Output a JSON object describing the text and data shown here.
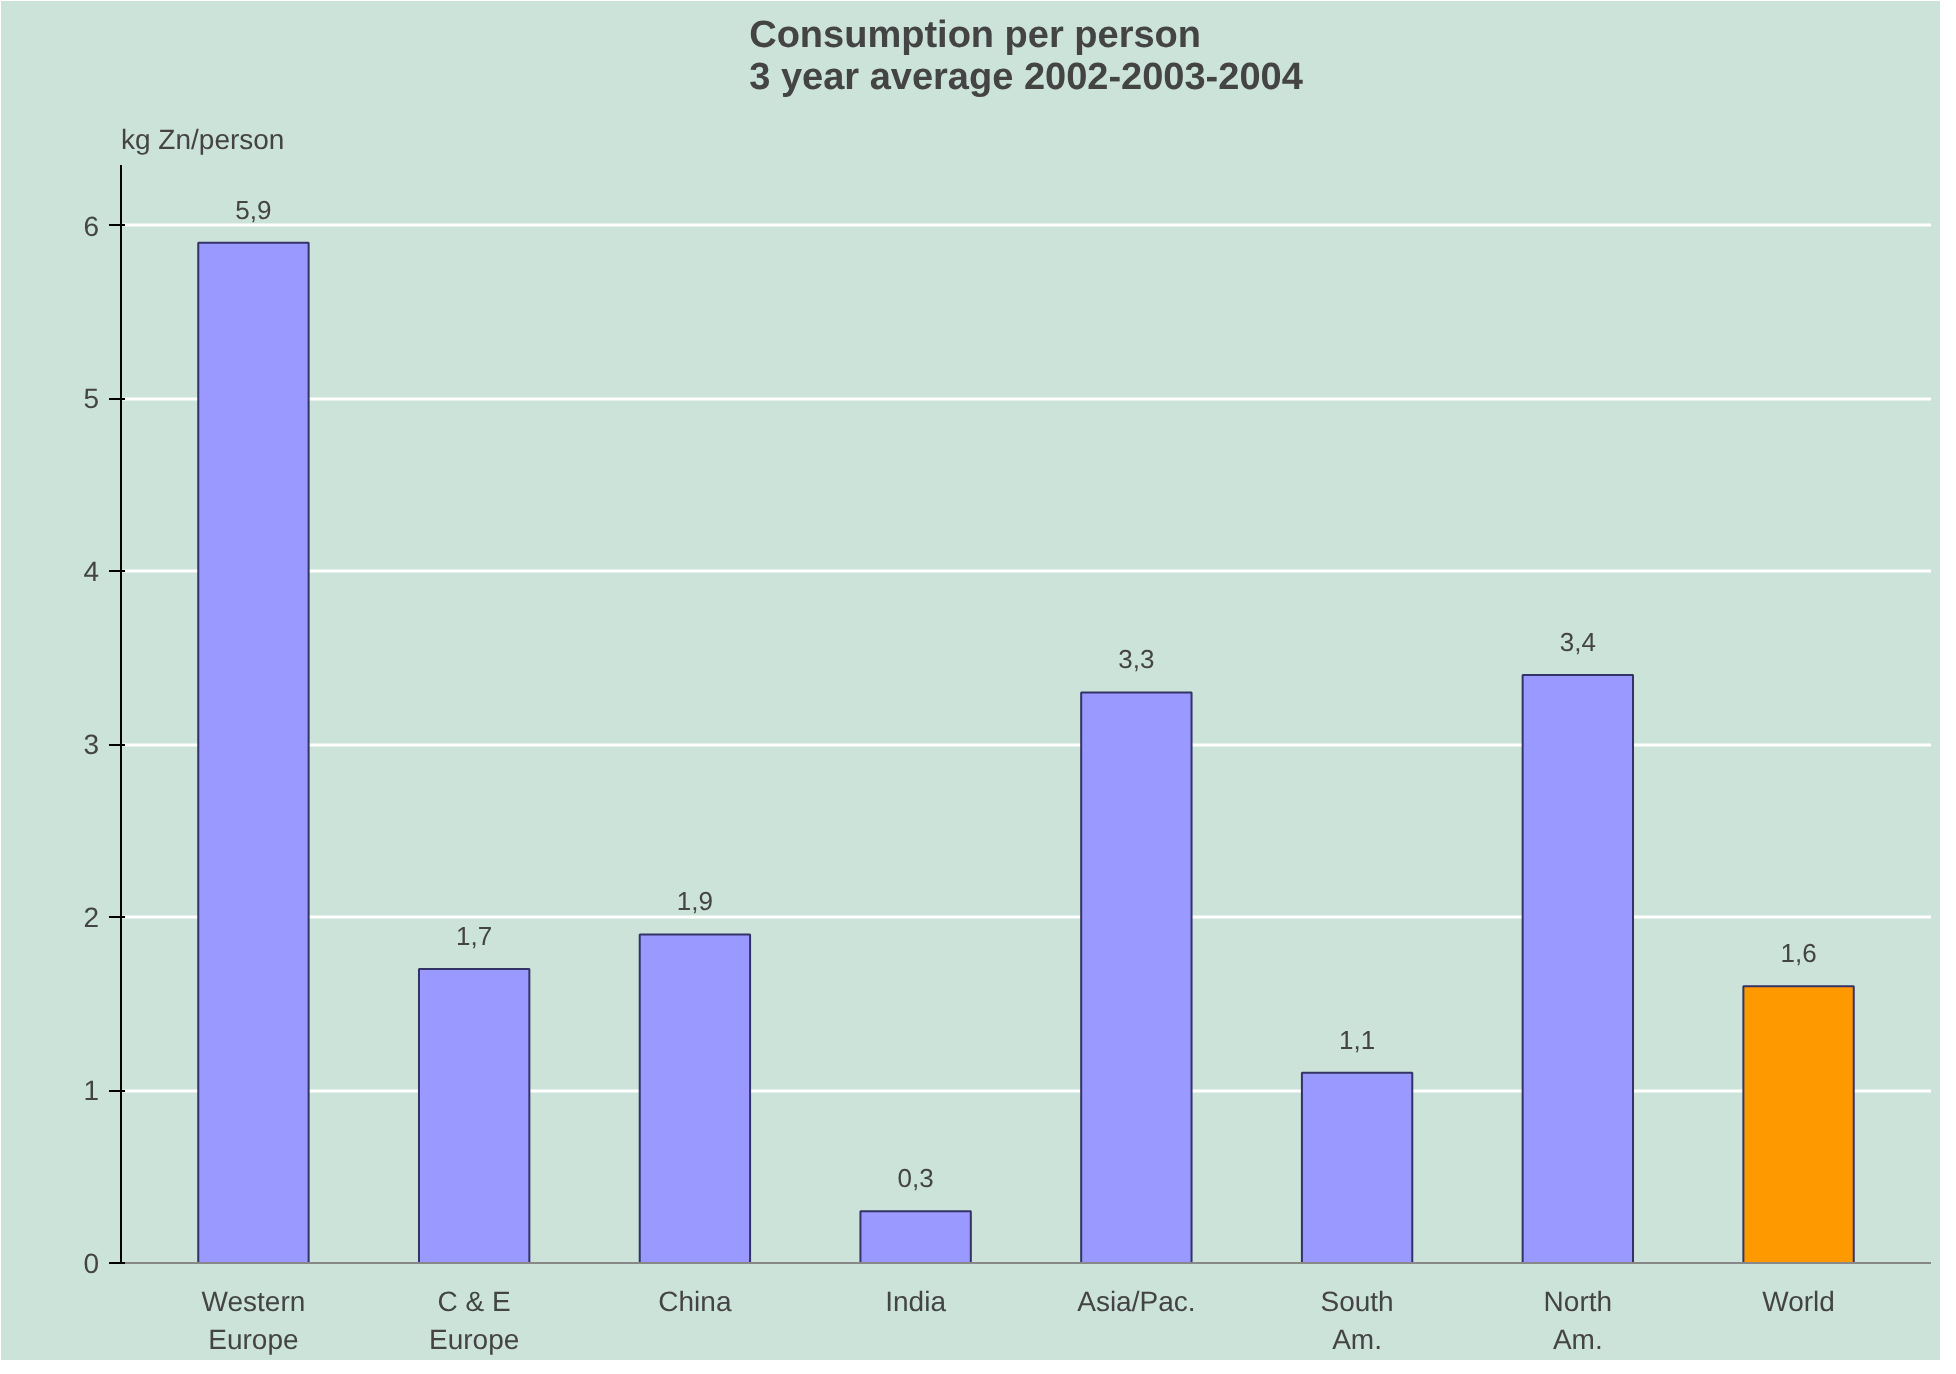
{
  "chart_data": {
    "type": "bar",
    "title": "Consumption per person\n3 year average 2002-2003-2004",
    "ylabel": "kg Zn/person",
    "categories": [
      "Western\nEurope",
      "C & E\nEurope",
      "China",
      "India",
      "Asia/Pac.",
      "South\nAm.",
      "North\nAm.",
      "World"
    ],
    "values": [
      5.9,
      1.7,
      1.9,
      0.3,
      3.3,
      1.1,
      3.4,
      1.6
    ],
    "value_labels": [
      "5,9",
      "1,7",
      "1,9",
      "0,3",
      "3,3",
      "1,1",
      "3,4",
      "1,6"
    ],
    "colors": [
      "#9999ff",
      "#9999ff",
      "#9999ff",
      "#9999ff",
      "#9999ff",
      "#9999ff",
      "#9999ff",
      "#ff9900"
    ],
    "ylim": [
      0,
      6
    ],
    "yticks": [
      0,
      1,
      2,
      3,
      4,
      5,
      6
    ],
    "grid": "y"
  }
}
